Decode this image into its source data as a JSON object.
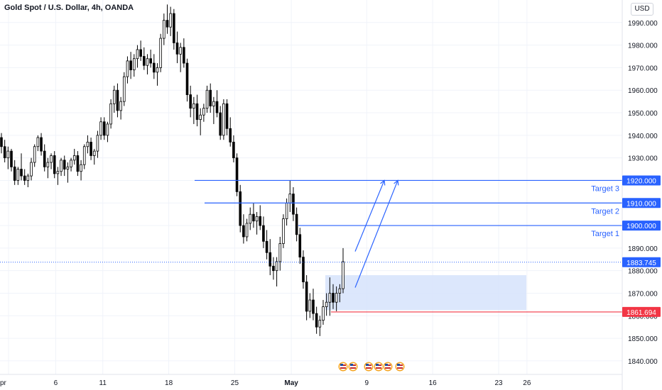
{
  "header": {
    "title": "Gold Spot / U.S. Dollar, 4h, OANDA",
    "currency_button": "USD"
  },
  "colors": {
    "grid": "#f0f3fa",
    "axis_text": "#131722",
    "candle": "#000000",
    "level_line": "#2962ff",
    "level_tag": "#2962ff",
    "stop_line": "#f23645",
    "stop_tag": "#f23645",
    "current_tag": "#2962ff",
    "zone_fill": "#d6e3fb",
    "target_text": "#2962ff"
  },
  "chart_data": {
    "type": "candlestick",
    "y_axis": {
      "ylim": [
        1834,
        2000
      ],
      "ticks": [
        1840,
        1850,
        1860,
        1870,
        1880,
        1890,
        1900,
        1910,
        1920,
        1930,
        1940,
        1950,
        1960,
        1970,
        1980,
        1990
      ],
      "tick_labels": [
        "1840.000",
        "1850.000",
        "1860.000",
        "1870.000",
        "1880.000",
        "1890.000",
        "1900.000",
        "1910.000",
        "1920.000",
        "1930.000",
        "1940.000",
        "1950.000",
        "1960.000",
        "1970.000",
        "1980.000",
        "1990.000"
      ]
    },
    "x_axis": {
      "tick_labels": [
        "pr",
        "6",
        "11",
        "18",
        "25",
        "May",
        "9",
        "16",
        "23",
        "26"
      ],
      "tick_days": [
        1,
        6,
        11,
        18,
        25,
        31,
        39,
        46,
        53,
        56
      ]
    },
    "candles": [
      [
        1939,
        1941,
        1932,
        1935
      ],
      [
        1935,
        1938,
        1928,
        1930
      ],
      [
        1930,
        1935,
        1925,
        1933
      ],
      [
        1933,
        1934,
        1924,
        1926
      ],
      [
        1926,
        1929,
        1918,
        1920
      ],
      [
        1920,
        1926,
        1918,
        1925
      ],
      [
        1925,
        1932,
        1920,
        1922
      ],
      [
        1922,
        1925,
        1918,
        1920
      ],
      [
        1920,
        1923,
        1917,
        1922
      ],
      [
        1922,
        1930,
        1920,
        1928
      ],
      [
        1928,
        1936,
        1926,
        1935
      ],
      [
        1935,
        1940,
        1933,
        1939
      ],
      [
        1939,
        1941,
        1931,
        1933
      ],
      [
        1933,
        1936,
        1924,
        1926
      ],
      [
        1926,
        1930,
        1921,
        1928
      ],
      [
        1928,
        1932,
        1925,
        1931
      ],
      [
        1931,
        1933,
        1921,
        1923
      ],
      [
        1923,
        1926,
        1918,
        1924
      ],
      [
        1924,
        1930,
        1922,
        1929
      ],
      [
        1929,
        1931,
        1922,
        1925
      ],
      [
        1925,
        1928,
        1919,
        1926
      ],
      [
        1926,
        1930,
        1924,
        1929
      ],
      [
        1929,
        1934,
        1927,
        1931
      ],
      [
        1931,
        1933,
        1922,
        1924
      ],
      [
        1924,
        1929,
        1920,
        1927
      ],
      [
        1927,
        1936,
        1925,
        1935
      ],
      [
        1935,
        1940,
        1932,
        1937
      ],
      [
        1937,
        1939,
        1929,
        1931
      ],
      [
        1931,
        1934,
        1927,
        1933
      ],
      [
        1933,
        1942,
        1930,
        1940
      ],
      [
        1940,
        1948,
        1938,
        1946
      ],
      [
        1946,
        1948,
        1938,
        1940
      ],
      [
        1940,
        1946,
        1937,
        1945
      ],
      [
        1945,
        1956,
        1943,
        1954
      ],
      [
        1954,
        1962,
        1950,
        1960
      ],
      [
        1960,
        1963,
        1948,
        1951
      ],
      [
        1951,
        1957,
        1947,
        1955
      ],
      [
        1955,
        1968,
        1953,
        1966
      ],
      [
        1966,
        1975,
        1963,
        1973
      ],
      [
        1973,
        1977,
        1965,
        1969
      ],
      [
        1969,
        1976,
        1966,
        1974
      ],
      [
        1974,
        1980,
        1970,
        1978
      ],
      [
        1978,
        1982,
        1973,
        1975
      ],
      [
        1975,
        1979,
        1969,
        1971
      ],
      [
        1971,
        1976,
        1967,
        1974
      ],
      [
        1974,
        1978,
        1970,
        1972
      ],
      [
        1972,
        1976,
        1965,
        1968
      ],
      [
        1968,
        1972,
        1962,
        1970
      ],
      [
        1970,
        1985,
        1968,
        1983
      ],
      [
        1983,
        1994,
        1980,
        1991
      ],
      [
        1991,
        1998,
        1985,
        1988
      ],
      [
        1988,
        1997,
        1984,
        1994
      ],
      [
        1994,
        1996,
        1978,
        1981
      ],
      [
        1981,
        1986,
        1972,
        1976
      ],
      [
        1976,
        1981,
        1968,
        1979
      ],
      [
        1979,
        1983,
        1970,
        1972
      ],
      [
        1972,
        1974,
        1955,
        1958
      ],
      [
        1958,
        1962,
        1948,
        1952
      ],
      [
        1952,
        1957,
        1945,
        1954
      ],
      [
        1954,
        1958,
        1944,
        1947
      ],
      [
        1947,
        1952,
        1940,
        1949
      ],
      [
        1949,
        1954,
        1946,
        1952
      ],
      [
        1952,
        1962,
        1950,
        1960
      ],
      [
        1960,
        1963,
        1950,
        1953
      ],
      [
        1953,
        1957,
        1945,
        1955
      ],
      [
        1955,
        1960,
        1948,
        1950
      ],
      [
        1950,
        1953,
        1938,
        1940
      ],
      [
        1940,
        1956,
        1938,
        1954
      ],
      [
        1954,
        1956,
        1940,
        1943
      ],
      [
        1943,
        1948,
        1935,
        1937
      ],
      [
        1937,
        1940,
        1928,
        1930
      ],
      [
        1930,
        1932,
        1913,
        1915
      ],
      [
        1915,
        1918,
        1897,
        1900
      ],
      [
        1900,
        1905,
        1892,
        1895
      ],
      [
        1895,
        1903,
        1893,
        1901
      ],
      [
        1901,
        1908,
        1898,
        1905
      ],
      [
        1905,
        1910,
        1899,
        1902
      ],
      [
        1902,
        1906,
        1896,
        1904
      ],
      [
        1904,
        1909,
        1898,
        1900
      ],
      [
        1900,
        1904,
        1890,
        1893
      ],
      [
        1893,
        1898,
        1885,
        1888
      ],
      [
        1888,
        1894,
        1878,
        1882
      ],
      [
        1882,
        1886,
        1876,
        1880
      ],
      [
        1880,
        1886,
        1873,
        1884
      ],
      [
        1884,
        1895,
        1880,
        1892
      ],
      [
        1892,
        1905,
        1890,
        1903
      ],
      [
        1903,
        1912,
        1900,
        1910
      ],
      [
        1910,
        1920,
        1906,
        1914
      ],
      [
        1914,
        1917,
        1902,
        1905
      ],
      [
        1905,
        1908,
        1893,
        1896
      ],
      [
        1896,
        1899,
        1883,
        1886
      ],
      [
        1886,
        1889,
        1872,
        1875
      ],
      [
        1875,
        1878,
        1858,
        1862
      ],
      [
        1862,
        1870,
        1859,
        1867
      ],
      [
        1867,
        1872,
        1858,
        1861
      ],
      [
        1861,
        1864,
        1852,
        1855
      ],
      [
        1855,
        1860,
        1851,
        1858
      ],
      [
        1858,
        1867,
        1856,
        1864
      ],
      [
        1864,
        1870,
        1860,
        1866
      ],
      [
        1866,
        1877,
        1860,
        1870
      ],
      [
        1870,
        1874,
        1863,
        1866
      ],
      [
        1866,
        1873,
        1862,
        1870
      ],
      [
        1870,
        1874,
        1866,
        1872
      ],
      [
        1872,
        1890,
        1870,
        1884
      ]
    ],
    "horizontal_levels": [
      {
        "price": 1920,
        "label": "Target 3",
        "tag": "1920.000"
      },
      {
        "price": 1910,
        "label": "Target 2",
        "tag": "1910.000"
      },
      {
        "price": 1900,
        "label": "Target 1",
        "tag": "1900.000"
      }
    ],
    "stop_level": {
      "price": 1861.694,
      "tag": "1861.694"
    },
    "current_price": {
      "price": 1883.745,
      "tag": "1883.745"
    },
    "buy_zone": {
      "price_top": 1878,
      "price_bottom": 1862.5
    },
    "projection_arrows": [
      {
        "from": 1872.5,
        "to": 1920
      },
      {
        "from": 1872.5,
        "to": 1920
      }
    ],
    "grid": true
  }
}
